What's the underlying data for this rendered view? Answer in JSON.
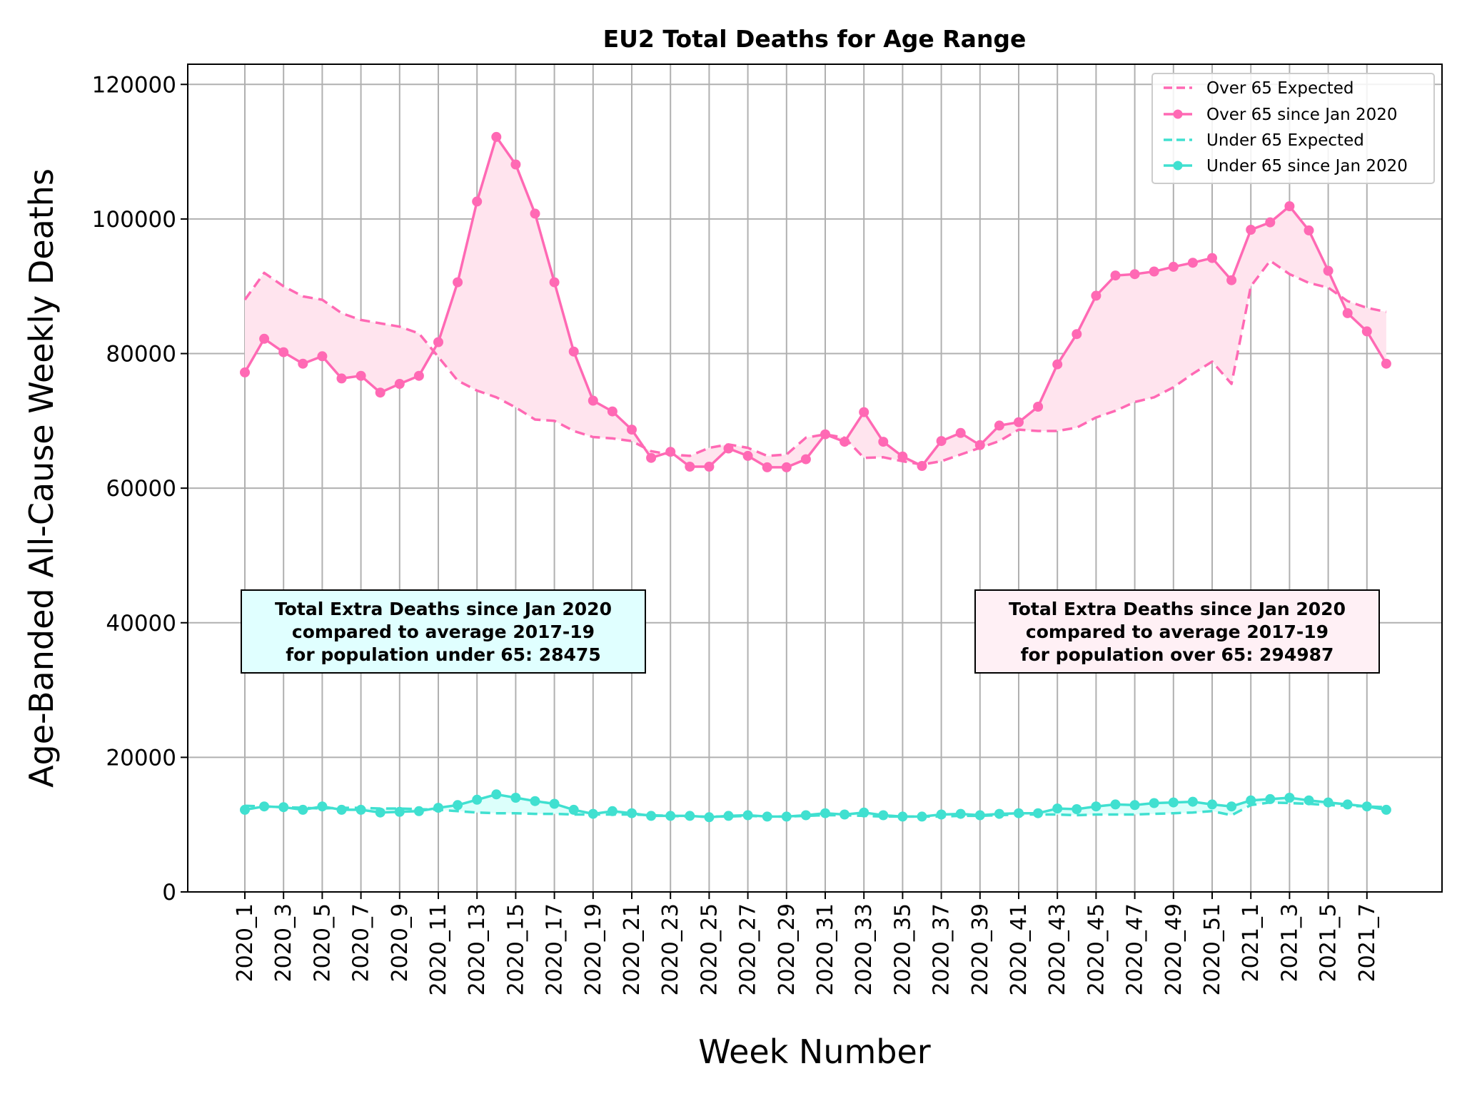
{
  "chart_data": {
    "type": "line",
    "title": "EU2 Total Deaths for Age Range",
    "xlabel": "Week Number",
    "ylabel": "Age-Banded All-Cause Weekly Deaths",
    "ylim": [
      0,
      123000
    ],
    "yticks": [
      0,
      20000,
      40000,
      60000,
      80000,
      100000,
      120000
    ],
    "grid": true,
    "legend_position": "top-right",
    "categories": [
      "2020_1",
      "2020_2",
      "2020_3",
      "2020_4",
      "2020_5",
      "2020_6",
      "2020_7",
      "2020_8",
      "2020_9",
      "2020_10",
      "2020_11",
      "2020_12",
      "2020_13",
      "2020_14",
      "2020_15",
      "2020_16",
      "2020_17",
      "2020_18",
      "2020_19",
      "2020_20",
      "2020_21",
      "2020_22",
      "2020_23",
      "2020_24",
      "2020_25",
      "2020_26",
      "2020_27",
      "2020_28",
      "2020_29",
      "2020_30",
      "2020_31",
      "2020_32",
      "2020_33",
      "2020_34",
      "2020_35",
      "2020_36",
      "2020_37",
      "2020_38",
      "2020_39",
      "2020_40",
      "2020_41",
      "2020_42",
      "2020_43",
      "2020_44",
      "2020_45",
      "2020_46",
      "2020_47",
      "2020_48",
      "2020_49",
      "2020_50",
      "2020_51",
      "2020_52",
      "2021_1",
      "2021_2",
      "2021_3",
      "2021_4",
      "2021_5",
      "2021_6",
      "2021_7",
      "2021_8"
    ],
    "tick_labels": [
      "2020_1",
      "2020_3",
      "2020_5",
      "2020_7",
      "2020_9",
      "2020_11",
      "2020_13",
      "2020_15",
      "2020_17",
      "2020_19",
      "2020_21",
      "2020_23",
      "2020_25",
      "2020_27",
      "2020_29",
      "2020_31",
      "2020_33",
      "2020_35",
      "2020_37",
      "2020_39",
      "2020_41",
      "2020_43",
      "2020_45",
      "2020_47",
      "2020_49",
      "2020_51",
      "2021_1",
      "2021_3",
      "2021_5",
      "2021_7"
    ],
    "series": [
      {
        "name": "Over 65 Expected",
        "color": "#ff69b4",
        "style": "dashed",
        "values": [
          88000,
          92000,
          90000,
          88500,
          88000,
          86000,
          85000,
          84500,
          84000,
          83000,
          79500,
          76000,
          74500,
          73500,
          72000,
          70200,
          70000,
          68500,
          67600,
          67400,
          67000,
          65500,
          65000,
          64800,
          66000,
          66500,
          66000,
          64800,
          65000,
          67500,
          68000,
          67500,
          64500,
          64600,
          64000,
          63500,
          64000,
          65000,
          66000,
          67000,
          68700,
          68500,
          68500,
          69000,
          70500,
          71500,
          72800,
          73500,
          75000,
          77000,
          78800,
          75500,
          90000,
          93800,
          91800,
          90500,
          89800,
          87800,
          86800,
          86200
        ]
      },
      {
        "name": "Over 65 since Jan 2020",
        "color": "#ff69b4",
        "style": "solid-markers",
        "values": [
          77200,
          82200,
          80200,
          78500,
          79600,
          76300,
          76700,
          74200,
          75500,
          76700,
          81700,
          90600,
          102600,
          112200,
          108100,
          100800,
          90600,
          80300,
          73000,
          71400,
          68700,
          64500,
          65400,
          63200,
          63200,
          65900,
          64800,
          63100,
          63100,
          64300,
          68000,
          66900,
          71300,
          66900,
          64700,
          63300,
          67000,
          68200,
          66400,
          69300,
          69800,
          72100,
          78400,
          82900,
          88600,
          91600,
          91800,
          92200,
          92900,
          93500,
          94200,
          90900,
          98400,
          99500,
          101900,
          98300,
          92300,
          86000,
          83300,
          78500
        ]
      },
      {
        "name": "Under 65 Expected",
        "color": "#40e0d0",
        "style": "dashed",
        "values": [
          12800,
          12700,
          12600,
          12500,
          12400,
          12500,
          12500,
          12400,
          12400,
          12300,
          12200,
          12000,
          11800,
          11700,
          11700,
          11600,
          11600,
          11500,
          11500,
          11500,
          11500,
          11400,
          11300,
          11200,
          11200,
          11200,
          11300,
          11200,
          11200,
          11300,
          11400,
          11400,
          11300,
          11200,
          11200,
          11200,
          11200,
          11300,
          11300,
          11400,
          11500,
          11500,
          11500,
          11400,
          11500,
          11500,
          11500,
          11600,
          11700,
          11800,
          12000,
          11400,
          12900,
          13300,
          13200,
          13100,
          12900,
          12800,
          12700,
          12600
        ]
      },
      {
        "name": "Under 65 since Jan 2020",
        "color": "#40e0d0",
        "style": "solid-markers",
        "values": [
          12200,
          12700,
          12600,
          12200,
          12700,
          12200,
          12200,
          11800,
          11900,
          12000,
          12500,
          12900,
          13700,
          14500,
          14000,
          13500,
          13100,
          12200,
          11600,
          12000,
          11700,
          11300,
          11300,
          11300,
          11100,
          11300,
          11400,
          11200,
          11200,
          11400,
          11700,
          11500,
          11800,
          11400,
          11200,
          11200,
          11500,
          11600,
          11400,
          11600,
          11700,
          11700,
          12400,
          12300,
          12700,
          13000,
          12900,
          13200,
          13300,
          13400,
          13000,
          12700,
          13600,
          13800,
          14000,
          13600,
          13300,
          13000,
          12700,
          12200
        ]
      }
    ],
    "annotations": [
      {
        "lines": [
          "Total Extra Deaths since Jan 2020",
          "compared to average 2017-19",
          "for population under 65: 28475"
        ],
        "background": "#e0ffff"
      },
      {
        "lines": [
          "Total Extra Deaths since Jan 2020",
          "compared to average 2017-19",
          "for population over 65: 294987"
        ],
        "background": "#fff0f5"
      }
    ]
  }
}
